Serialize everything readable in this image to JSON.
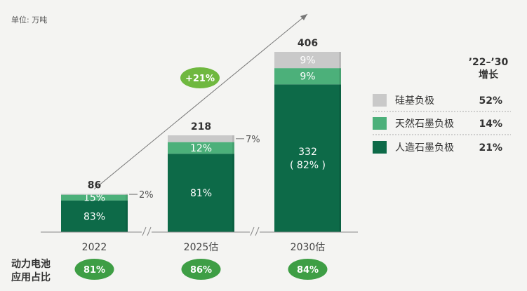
{
  "unit_label": "单位: 万吨",
  "growth_header_line1": "’22–’30",
  "growth_header_line2": "增长",
  "growth_badge": "+21%",
  "row_label_line1": "动力电池",
  "row_label_line2": "应用占比",
  "colors": {
    "silicon": "#c9c9c9",
    "natural": "#4cb07a",
    "artificial": "#0d6a48",
    "pill": "#3e9e45",
    "axis": "#888888"
  },
  "chart_data": {
    "type": "bar",
    "stacked": true,
    "categories": [
      "2022",
      "2025估",
      "2030估"
    ],
    "totals": [
      "86",
      "218",
      "406"
    ],
    "series": [
      {
        "name": "人造石墨负极",
        "key": "artificial",
        "labels": [
          "83%",
          "81%",
          "332\n( 82% )"
        ],
        "shares": [
          0.83,
          0.81,
          0.82
        ]
      },
      {
        "name": "天然石墨负极",
        "key": "natural",
        "labels": [
          "15%",
          "12%",
          "9%"
        ],
        "shares": [
          0.15,
          0.12,
          0.09
        ]
      },
      {
        "name": "硅基负极",
        "key": "silicon",
        "labels": [
          "2%",
          "7%",
          "9%"
        ],
        "shares": [
          0.02,
          0.07,
          0.09
        ]
      }
    ],
    "total_values": [
      86,
      218,
      406
    ],
    "legend": [
      {
        "name": "硅基负极",
        "key": "silicon",
        "growth": "52%"
      },
      {
        "name": "天然石墨负极",
        "key": "natural",
        "growth": "14%"
      },
      {
        "name": "人造石墨负极",
        "key": "artificial",
        "growth": "21%"
      }
    ],
    "power_battery_share": [
      "81%",
      "86%",
      "84%"
    ]
  }
}
